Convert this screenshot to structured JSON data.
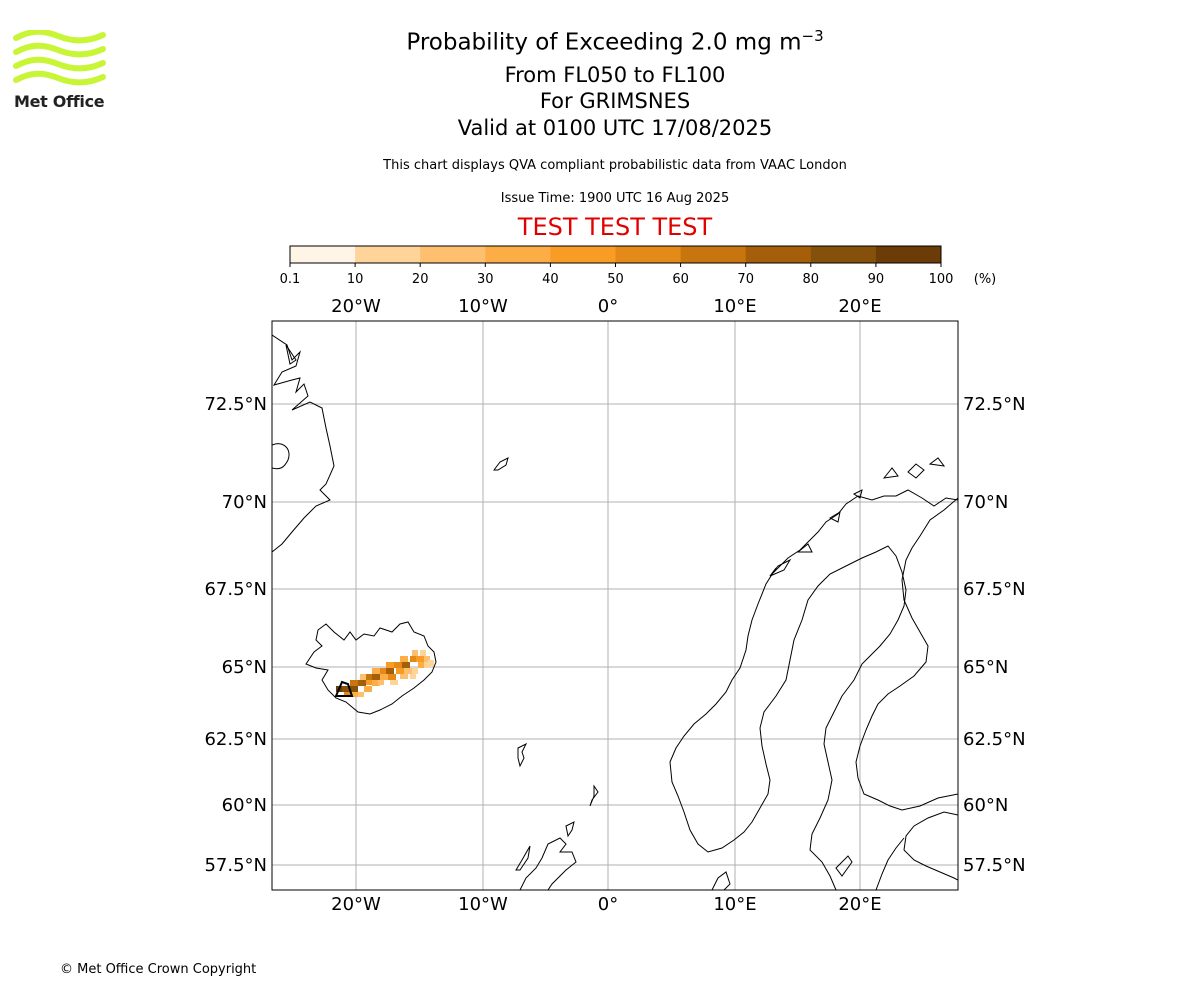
{
  "logo": {
    "text": "Met Office",
    "colors": {
      "waves": "#c8f536",
      "text": "#222222"
    }
  },
  "header": {
    "title_main": "Probability of Exceeding 2.0 mg m",
    "title_sup": "−3",
    "line2": "From FL050 to FL100",
    "line3": "For GRIMSNES",
    "line4": "Valid at 0100 UTC 17/08/2025",
    "subtitle": "This chart displays QVA compliant probabilistic data from VAAC London",
    "issue_time": "Issue Time: 1900 UTC 16 Aug 2025",
    "test_banner": "TEST TEST TEST",
    "test_color": "#e00000"
  },
  "colorbar": {
    "ticks": [
      "0.1",
      "10",
      "20",
      "30",
      "40",
      "50",
      "60",
      "70",
      "80",
      "90",
      "100"
    ],
    "unit": "(%)",
    "colors": [
      "#fff5e6",
      "#fee5c4",
      "#fed49a",
      "#fec06e",
      "#fdad45",
      "#f99c26",
      "#e38a19",
      "#c87510",
      "#a55f0b",
      "#855009",
      "#6b3c08"
    ]
  },
  "map": {
    "lon_labels": [
      "20°W",
      "10°W",
      "0°",
      "10°E",
      "20°E"
    ],
    "lat_labels": [
      "72.5°N",
      "70°N",
      "67.5°N",
      "65°N",
      "62.5°N",
      "60°N",
      "57.5°N"
    ],
    "volcano": "GRIMSNES"
  },
  "footer": {
    "copyright": "© Met Office Crown Copyright"
  }
}
